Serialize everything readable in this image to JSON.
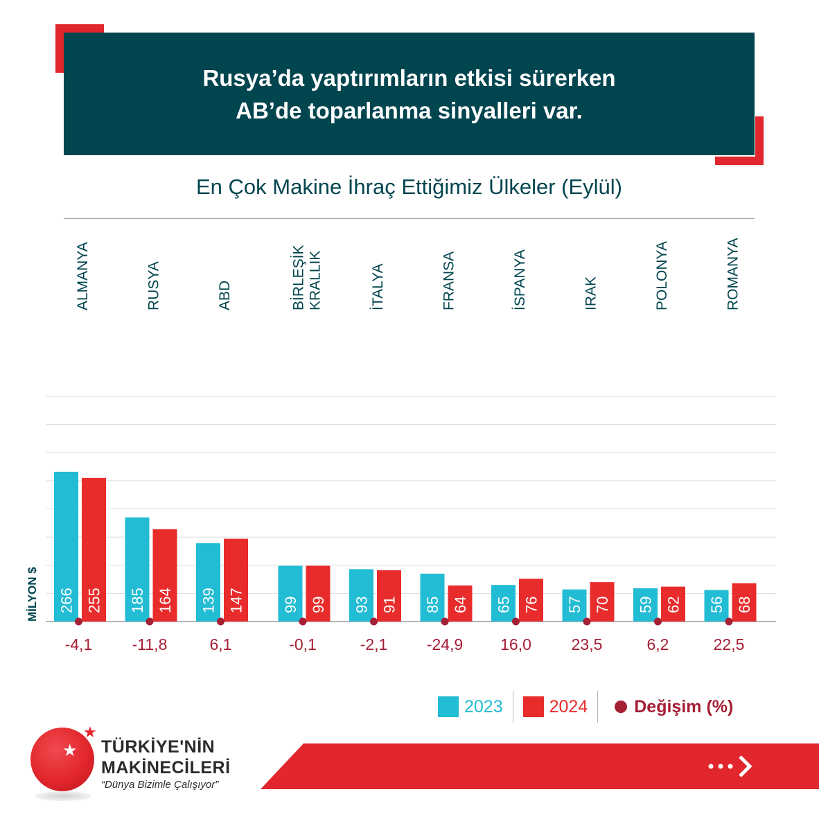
{
  "header": {
    "title_line1": "Rusya’da yaptırımların etkisi sürerken",
    "title_line2": "AB’de toparlanma sinyalleri var.",
    "accent_color": "#e2262d",
    "background_color": "#01454f"
  },
  "chart_data": {
    "type": "bar",
    "title": "En Çok Makine İhraç Ettiğimiz Ülkeler (Eylül)",
    "ylabel": "MİLYON $",
    "ylim": [
      0,
      400
    ],
    "categories": [
      "ALMANYA",
      "RUSYA",
      "ABD",
      "BİRLEŞİK KRALLIK",
      "İTALYA",
      "FRANSA",
      "İSPANYA",
      "IRAK",
      "POLONYA",
      "ROMANYA"
    ],
    "category_lines": [
      [
        "ALMANYA"
      ],
      [
        "RUSYA"
      ],
      [
        "ABD"
      ],
      [
        "BİRLEŞİK",
        "KRALLIK"
      ],
      [
        "İTALYA"
      ],
      [
        "FRANSA"
      ],
      [
        "İSPANYA"
      ],
      [
        "IRAK"
      ],
      [
        "POLONYA"
      ],
      [
        "ROMANYA"
      ]
    ],
    "series": [
      {
        "name": "2023",
        "color": "#22bcd4",
        "values": [
          266,
          185,
          139,
          99,
          93,
          85,
          65,
          57,
          59,
          56
        ]
      },
      {
        "name": "2024",
        "color": "#e82c2c",
        "values": [
          255,
          164,
          147,
          99,
          91,
          64,
          76,
          70,
          62,
          68
        ]
      }
    ],
    "change": {
      "name": "Değişim (%)",
      "color": "#a51f35",
      "values": [
        "-4,1",
        "-11,8",
        "6,1",
        "-0,1",
        "-2,1",
        "-24,9",
        "16,0",
        "23,5",
        "6,2",
        "22,5"
      ]
    },
    "grid": true,
    "legend_position": "bottom-right"
  },
  "brand": {
    "line1": "TÜRKİYE'NİN",
    "line2": "MAKİNECİLERİ",
    "slogan": "“Dünya Bizimle Çalışıyor”",
    "star_icon": "star-icon",
    "next_icon": "chevron-right-icon"
  }
}
